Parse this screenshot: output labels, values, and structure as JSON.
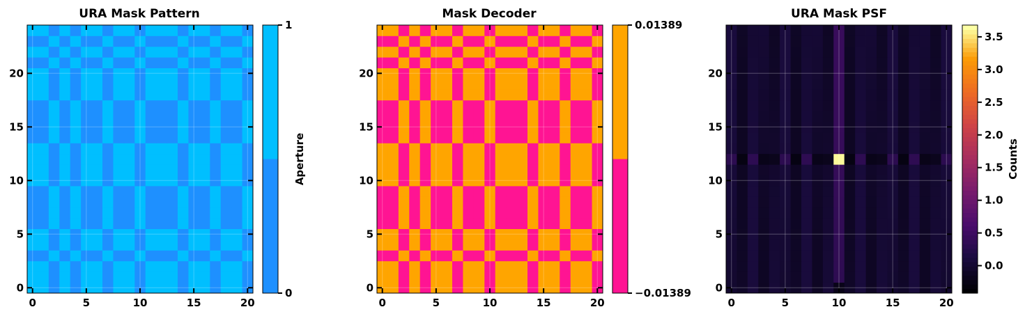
{
  "chart_data": [
    {
      "type": "heatmap",
      "title": "URA Mask Pattern",
      "xlim": [
        -0.5,
        20.5
      ],
      "ylim": [
        -0.5,
        24.5
      ],
      "xticks": [
        "0",
        "5",
        "10",
        "15",
        "20"
      ],
      "yticks": [
        "0",
        "5",
        "10",
        "15",
        "20"
      ],
      "grid": true,
      "rows": 25,
      "cols": 21,
      "row_pattern": [
        1,
        1,
        1,
        0,
        1,
        1,
        0,
        0,
        0,
        0,
        1,
        1,
        1,
        1,
        0,
        0,
        0,
        0,
        1,
        1,
        1,
        0,
        1,
        0,
        1
      ],
      "col_pattern": [
        1,
        1,
        0,
        1,
        0,
        1,
        1,
        0,
        1,
        1,
        0,
        1,
        1,
        1,
        0,
        1,
        1,
        0,
        1,
        1,
        0
      ],
      "colors": {
        "open": "#00BFFF",
        "closed": "#1E90FF"
      },
      "colorbar": {
        "label": "Aperture",
        "min_label": "0",
        "max_label": "1",
        "colors": [
          "#1E90FF",
          "#00BFFF"
        ]
      }
    },
    {
      "type": "heatmap",
      "title": "Mask Decoder",
      "xlim": [
        -0.5,
        20.5
      ],
      "ylim": [
        -0.5,
        24.5
      ],
      "xticks": [
        "0",
        "5",
        "10",
        "15",
        "20"
      ],
      "yticks": [
        "0",
        "5",
        "10",
        "15",
        "20"
      ],
      "grid": true,
      "colors": {
        "positive": "#FFA500",
        "negative": "#FF1493"
      },
      "colorbar": {
        "label": "",
        "min_label": "−0.01389",
        "max_label": "0.01389",
        "colors": [
          "#FF1493",
          "#FFA500"
        ]
      }
    },
    {
      "type": "heatmap",
      "title": "URA Mask PSF",
      "xlim": [
        -0.5,
        20.5
      ],
      "ylim": [
        -0.5,
        24.5
      ],
      "xticks": [
        "0",
        "5",
        "10",
        "15",
        "20"
      ],
      "yticks": [
        "0",
        "5",
        "10",
        "15",
        "20"
      ],
      "grid": true,
      "colormap": "inferno",
      "peak": {
        "x": 10,
        "y": 12,
        "value": 3.65
      },
      "vmin": -0.42,
      "vmax": 3.68,
      "colorbar": {
        "label": "Counts",
        "ticks": [
          "0.0",
          "0.5",
          "1.0",
          "1.5",
          "2.0",
          "2.5",
          "3.0",
          "3.5"
        ],
        "tick_values": [
          0,
          0.5,
          1,
          1.5,
          2,
          2.5,
          3,
          3.5
        ]
      }
    }
  ]
}
